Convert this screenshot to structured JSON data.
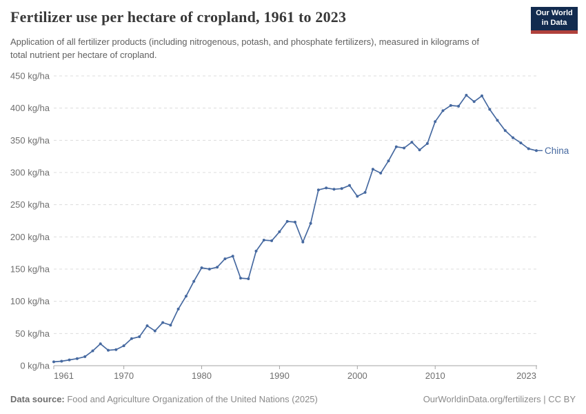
{
  "header": {
    "title": "Fertilizer use per hectare of cropland, 1961 to 2023",
    "logo": {
      "line1": "Our World",
      "line2": "in Data"
    }
  },
  "subtitle": "Application of all fertilizer products (including nitrogenous, potash, and phosphate fertilizers), measured in kilograms of total nutrient per hectare of cropland.",
  "footer": {
    "source_label": "Data source:",
    "source_text": " Food and Agriculture Organization of the United Nations (2025)",
    "link_text": "OurWorldinData.org/fertilizers | CC BY"
  },
  "colors": {
    "series_blue": "#4669A0",
    "grid": "#dcdcdc",
    "axis": "#a3a3a3",
    "axis_text": "#6e6e6e",
    "logo_navy": "#122B4F",
    "logo_red": "#B0413C"
  },
  "chart_data": {
    "type": "line",
    "title": "Fertilizer use per hectare of cropland, 1961 to 2023",
    "ylabel": "kg/ha",
    "y_unit_suffix": " kg/ha",
    "ylim": [
      0,
      450
    ],
    "ytick_interval": 50,
    "yticks": [
      0,
      50,
      100,
      150,
      200,
      250,
      300,
      350,
      400,
      450
    ],
    "xticks": [
      1961,
      1970,
      1980,
      1990,
      2000,
      2010,
      2023
    ],
    "grid": "horizontal-dashed",
    "legend_position": "end-of-line",
    "x": [
      1961,
      1962,
      1963,
      1964,
      1965,
      1966,
      1967,
      1968,
      1969,
      1970,
      1971,
      1972,
      1973,
      1974,
      1975,
      1976,
      1977,
      1978,
      1979,
      1980,
      1981,
      1982,
      1983,
      1984,
      1985,
      1986,
      1987,
      1988,
      1989,
      1990,
      1991,
      1992,
      1993,
      1994,
      1995,
      1996,
      1997,
      1998,
      1999,
      2000,
      2001,
      2002,
      2003,
      2004,
      2005,
      2006,
      2007,
      2008,
      2009,
      2010,
      2011,
      2012,
      2013,
      2014,
      2015,
      2016,
      2017,
      2018,
      2019,
      2020,
      2021,
      2022,
      2023
    ],
    "series": [
      {
        "name": "China",
        "color": "#4669A0",
        "values": [
          6,
          7,
          9,
          11,
          14,
          23,
          34,
          24,
          25,
          31,
          42,
          45,
          62,
          54,
          67,
          63,
          88,
          108,
          131,
          152,
          150,
          153,
          166,
          170,
          136,
          135,
          178,
          195,
          194,
          208,
          224,
          223,
          192,
          221,
          273,
          276,
          274,
          275,
          280,
          263,
          269,
          305,
          299,
          318,
          340,
          338,
          347,
          335,
          345,
          379,
          396,
          404,
          403,
          420,
          410,
          419,
          398,
          381,
          365,
          354,
          346,
          337,
          334
        ]
      }
    ]
  }
}
